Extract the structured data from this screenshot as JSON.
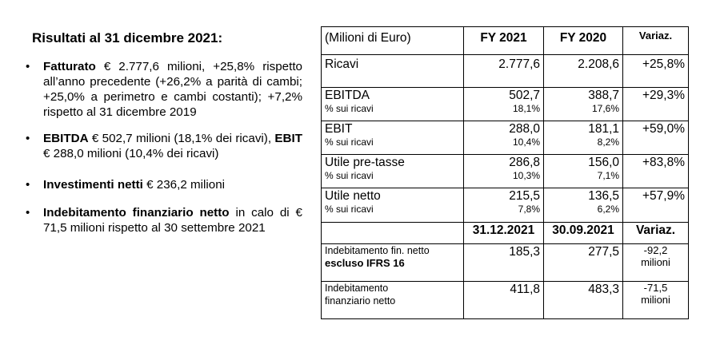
{
  "left": {
    "heading": "Risultati al 31 dicembre 2021:",
    "bullets": [
      {
        "bold": "Fatturato",
        "text": " € 2.777,6 milioni, +25,8% rispetto all’anno precedente (+26,2% a parità di cambi; +25,0% a perimetro e cambi costanti); +7,2% rispetto al 31 dicembre 2019"
      },
      {
        "bold": "EBITDA",
        "text": " € 502,7 milioni (18,1% dei ricavi), ",
        "bold2": "EBIT",
        "text2": " € 288,0 milioni (10,4% dei ricavi)"
      },
      {
        "bold": "Investimenti netti",
        "text": " € 236,2 milioni"
      },
      {
        "bold": "Indebitamento finanziario netto",
        "text": " in calo di € 71,5 milioni rispetto al 30 settembre 2021"
      }
    ]
  },
  "table": {
    "header": {
      "label": "(Milioni di Euro)",
      "col1": "FY 2021",
      "col2": "FY 2020",
      "col3": "Variaz."
    },
    "rows": [
      {
        "label": "Ricavi",
        "v1": "2.777,6",
        "v2": "2.208,6",
        "var": "+25,8%"
      },
      {
        "label": "EBITDA",
        "sub": "% sui ricavi",
        "v1": "502,7",
        "p1": "18,1%",
        "v2": "388,7",
        "p2": "17,6%",
        "var": "+29,3%"
      },
      {
        "label": "EBIT",
        "sub": "% sui ricavi",
        "v1": "288,0",
        "p1": "10,4%",
        "v2": "181,1",
        "p2": "8,2%",
        "var": "+59,0%"
      },
      {
        "label": "Utile pre-tasse",
        "sub": "% sui ricavi",
        "v1": "286,8",
        "p1": "10,3%",
        "v2": "156,0",
        "p2": "7,1%",
        "var": "+83,8%"
      },
      {
        "label": "Utile netto",
        "sub": "% sui ricavi",
        "v1": "215,5",
        "p1": "7,8%",
        "v2": "136,5",
        "p2": "6,2%",
        "var": "+57,9%"
      }
    ],
    "header2": {
      "col1": "31.12.2021",
      "col2": "30.09.2021",
      "col3": "Variaz."
    },
    "debt": [
      {
        "label_line1": "Indebitamento fin. netto",
        "label_line2": "escluso IFRS 16",
        "v1": "185,3",
        "v2": "277,5",
        "var_line1": "-92,2",
        "var_line2": "milioni"
      },
      {
        "label_line1": "Indebitamento",
        "label_line2": "finanziario netto",
        "v1": "411,8",
        "v2": "483,3",
        "var_line1": "-71,5",
        "var_line2": "milioni"
      }
    ]
  }
}
